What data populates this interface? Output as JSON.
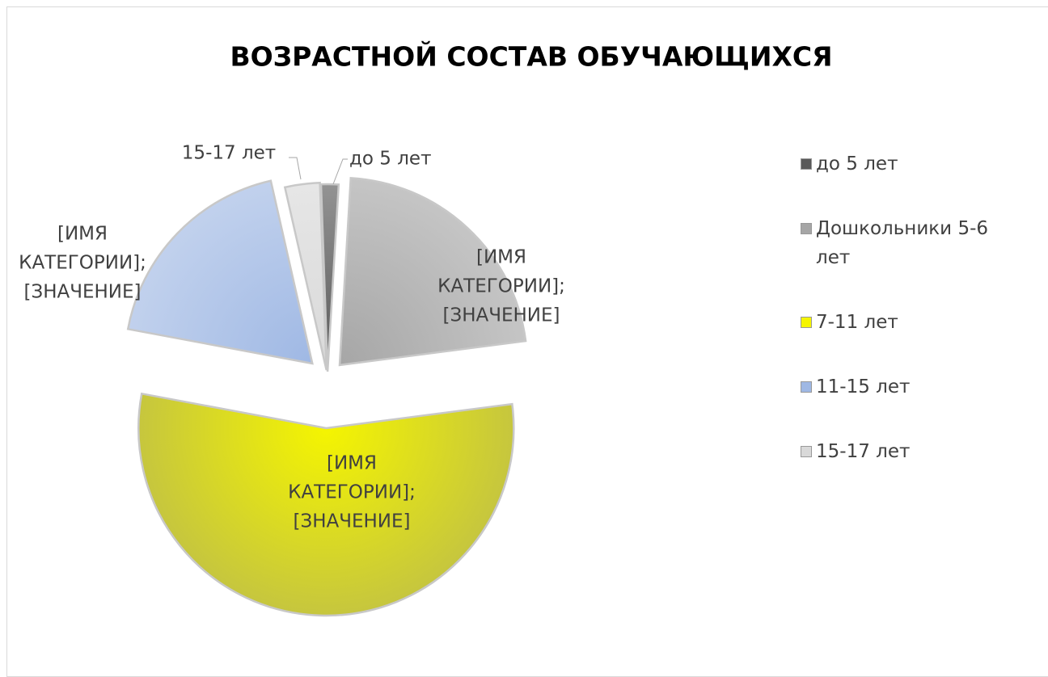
{
  "chart_data": {
    "type": "pie",
    "title": "ВОЗРАСТНОЙ СОСТАВ ОБУЧАЮЩИХСЯ",
    "categories": [
      "до 5 лет",
      "Дошкольники 5-6 лет",
      "7-11 лет",
      "11-15 лет",
      "15-17 лет"
    ],
    "values": [
      1.5,
      22,
      55,
      18.5,
      3
    ],
    "colors": [
      "#595959",
      "#a6a6a6",
      "#f5f500",
      "#9fb8e4",
      "#d9d9d9"
    ],
    "data_labels": [
      [
        "до 5 лет"
      ],
      [
        "[ИМЯ",
        "КАТЕГОРИИ];",
        "[ЗНАЧЕНИЕ]"
      ],
      [
        "[ИМЯ",
        "КАТЕГОРИИ];",
        "[ЗНАЧЕНИЕ]"
      ],
      [
        "[ИМЯ",
        "КАТЕГОРИИ];",
        "[ЗНАЧЕНИЕ]"
      ],
      [
        "15-17 лет"
      ]
    ],
    "legend": "right"
  }
}
